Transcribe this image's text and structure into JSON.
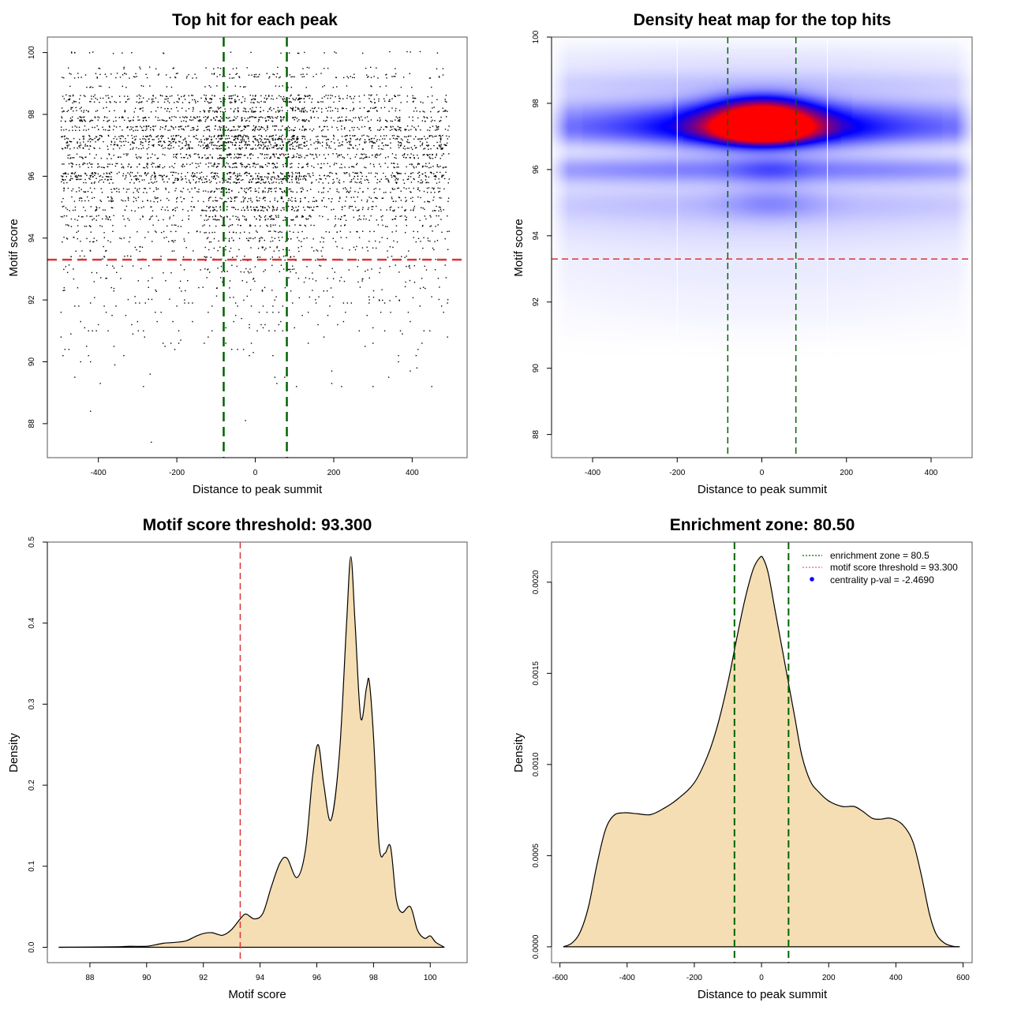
{
  "chart_data": [
    {
      "id": "scatter",
      "type": "scatter",
      "title": "Top hit for each peak",
      "xlabel": "Distance to peak summit",
      "ylabel": "Motif score",
      "xlim": [
        -530,
        540
      ],
      "ylim": [
        86.9,
        100.5
      ],
      "xticks": [
        -400,
        -200,
        0,
        200,
        400
      ],
      "yticks": [
        88,
        90,
        92,
        94,
        96,
        98,
        100
      ],
      "vlines": [
        -80.5,
        80.5
      ],
      "hline": 93.3,
      "vline_color": "#006400",
      "hline_color": "#dd3333",
      "point_color": "#000000",
      "sparse_points": [
        [
          -265,
          87.4
        ],
        [
          -420,
          88.4
        ],
        [
          -25,
          88.1
        ],
        [
          -460,
          89.5
        ],
        [
          -395,
          89.3
        ],
        [
          -268,
          89.6
        ],
        [
          -285,
          89.2
        ],
        [
          50,
          89.5
        ],
        [
          55,
          89.3
        ],
        [
          75,
          89.5
        ],
        [
          105,
          89.2
        ],
        [
          195,
          89.7
        ],
        [
          195,
          89.3
        ],
        [
          220,
          89.2
        ],
        [
          300,
          89.2
        ],
        [
          340,
          89.5
        ],
        [
          395,
          89.7
        ],
        [
          412,
          89.8
        ],
        [
          450,
          89.2
        ],
        [
          -445,
          90.0
        ],
        [
          -420,
          90.0
        ],
        [
          -358,
          89.9
        ],
        [
          -490,
          90.2
        ],
        [
          -425,
          90.2
        ],
        [
          -335,
          90.2
        ],
        [
          -5,
          90.3
        ],
        [
          -15,
          90.2
        ],
        [
          45,
          90.2
        ],
        [
          80,
          90.2
        ],
        [
          365,
          90.2
        ],
        [
          365,
          90.0
        ],
        [
          410,
          90.2
        ],
        [
          415,
          90.4
        ],
        [
          -485,
          90.4
        ],
        [
          -475,
          90.4
        ],
        [
          -430,
          90.5
        ],
        [
          -360,
          90.5
        ],
        [
          -230,
          90.5
        ],
        [
          -205,
          90.4
        ],
        [
          -60,
          90.4
        ],
        [
          -45,
          90.4
        ],
        [
          -30,
          90.4
        ],
        [
          -10,
          90.6
        ],
        [
          280,
          90.5
        ],
        [
          425,
          90.6
        ],
        [
          -495,
          90.8
        ],
        [
          -470,
          90.9
        ],
        [
          -312,
          90.9
        ],
        [
          -282,
          90.8
        ],
        [
          -195,
          90.6
        ],
        [
          -190,
          90.7
        ],
        [
          -235,
          90.6
        ],
        [
          -215,
          90.6
        ],
        [
          -130,
          90.6
        ],
        [
          -120,
          90.8
        ],
        [
          -75,
          90.6
        ],
        [
          135,
          90.6
        ],
        [
          175,
          90.8
        ],
        [
          300,
          90.6
        ],
        [
          490,
          90.8
        ],
        [
          -425,
          91.0
        ],
        [
          -415,
          91.0
        ],
        [
          -405,
          91.0
        ],
        [
          -375,
          91.0
        ],
        [
          -435,
          91.1
        ],
        [
          -298,
          91.0
        ],
        [
          -285,
          91.0
        ],
        [
          -195,
          91.0
        ],
        [
          -110,
          91.0
        ],
        [
          -75,
          91.1
        ],
        [
          -15,
          91.1
        ],
        [
          5,
          91.0
        ],
        [
          20,
          91.1
        ],
        [
          35,
          91.0
        ],
        [
          50,
          91.0
        ],
        [
          70,
          91.0
        ],
        [
          100,
          91.1
        ],
        [
          265,
          91.0
        ],
        [
          300,
          91.1
        ],
        [
          330,
          91.0
        ],
        [
          370,
          91.0
        ],
        [
          375,
          90.9
        ],
        [
          430,
          91.0
        ],
        [
          445,
          91.0
        ],
        [
          -445,
          91.3
        ],
        [
          -400,
          91.2
        ],
        [
          -315,
          91.2
        ],
        [
          -300,
          91.3
        ],
        [
          -250,
          91.3
        ],
        [
          -210,
          91.3
        ],
        [
          -160,
          91.3
        ],
        [
          -55,
          91.3
        ],
        [
          -35,
          91.4
        ],
        [
          -15,
          91.2
        ],
        [
          15,
          91.2
        ],
        [
          25,
          91.2
        ],
        [
          60,
          91.2
        ],
        [
          65,
          91.3
        ],
        [
          160,
          91.2
        ],
        [
          210,
          91.2
        ],
        [
          225,
          91.3
        ],
        [
          395,
          91.3
        ],
        [
          -495,
          91.6
        ],
        [
          -380,
          91.6
        ],
        [
          -365,
          91.5
        ],
        [
          -330,
          91.5
        ],
        [
          -255,
          91.6
        ],
        [
          -240,
          91.6
        ],
        [
          -120,
          91.6
        ],
        [
          -80,
          91.6
        ],
        [
          -50,
          91.5
        ],
        [
          10,
          91.6
        ],
        [
          30,
          91.6
        ],
        [
          45,
          91.6
        ],
        [
          60,
          91.6
        ],
        [
          120,
          91.5
        ],
        [
          135,
          91.6
        ],
        [
          185,
          91.5
        ],
        [
          230,
          91.6
        ],
        [
          285,
          91.5
        ],
        [
          320,
          91.6
        ],
        [
          345,
          91.6
        ],
        [
          390,
          91.6
        ],
        [
          480,
          91.6
        ],
        [
          -460,
          91.8
        ],
        [
          -450,
          91.8
        ],
        [
          -420,
          91.9
        ],
        [
          -385,
          91.8
        ],
        [
          -355,
          91.8
        ],
        [
          -305,
          91.9
        ],
        [
          -295,
          91.9
        ],
        [
          -280,
          91.9
        ],
        [
          -200,
          91.8
        ],
        [
          -180,
          91.9
        ],
        [
          -170,
          91.9
        ],
        [
          -160,
          91.9
        ],
        [
          -110,
          91.8
        ],
        [
          -50,
          91.9
        ],
        [
          -45,
          91.8
        ],
        [
          -10,
          91.8
        ],
        [
          20,
          91.8
        ],
        [
          45,
          91.8
        ],
        [
          70,
          91.8
        ],
        [
          95,
          91.9
        ],
        [
          155,
          91.9
        ],
        [
          190,
          91.8
        ],
        [
          225,
          91.9
        ],
        [
          235,
          91.9
        ],
        [
          245,
          91.9
        ],
        [
          290,
          91.9
        ],
        [
          330,
          91.9
        ],
        [
          420,
          91.8
        ],
        [
          475,
          91.8
        ],
        [
          490,
          91.9
        ]
      ],
      "dense_rows": [
        {
          "y": 92.0,
          "density": 0.1
        },
        {
          "y": 92.1,
          "density": 0.1
        },
        {
          "y": 92.3,
          "density": 0.1
        },
        {
          "y": 92.4,
          "density": 0.12
        },
        {
          "y": 92.6,
          "density": 0.12
        },
        {
          "y": 92.7,
          "density": 0.14
        },
        {
          "y": 92.9,
          "density": 0.14
        },
        {
          "y": 93.0,
          "density": 0.16
        },
        {
          "y": 93.1,
          "density": 0.16
        },
        {
          "y": 93.3,
          "density": 0.18
        },
        {
          "y": 93.4,
          "density": 0.2
        },
        {
          "y": 93.6,
          "density": 0.2
        },
        {
          "y": 93.7,
          "density": 0.22
        },
        {
          "y": 93.9,
          "density": 0.28
        },
        {
          "y": 94.0,
          "density": 0.34
        },
        {
          "y": 94.2,
          "density": 0.38
        },
        {
          "y": 94.4,
          "density": 0.42
        },
        {
          "y": 94.6,
          "density": 0.5
        },
        {
          "y": 94.7,
          "density": 0.55
        },
        {
          "y": 94.9,
          "density": 0.62
        },
        {
          "y": 95.0,
          "density": 0.6
        },
        {
          "y": 95.2,
          "density": 0.55
        },
        {
          "y": 95.3,
          "density": 0.55
        },
        {
          "y": 95.5,
          "density": 0.6
        },
        {
          "y": 95.6,
          "density": 0.62
        },
        {
          "y": 95.8,
          "density": 0.7
        },
        {
          "y": 95.9,
          "density": 0.88
        },
        {
          "y": 96.0,
          "density": 0.95
        },
        {
          "y": 96.1,
          "density": 0.9
        },
        {
          "y": 96.3,
          "density": 0.75
        },
        {
          "y": 96.4,
          "density": 0.68
        },
        {
          "y": 96.6,
          "density": 0.72
        },
        {
          "y": 96.7,
          "density": 0.8
        },
        {
          "y": 96.9,
          "density": 0.86
        },
        {
          "y": 97.0,
          "density": 0.9
        },
        {
          "y": 97.1,
          "density": 0.95
        },
        {
          "y": 97.2,
          "density": 1.0
        },
        {
          "y": 97.3,
          "density": 0.98
        },
        {
          "y": 97.5,
          "density": 0.85
        },
        {
          "y": 97.6,
          "density": 0.82
        },
        {
          "y": 97.8,
          "density": 0.95
        },
        {
          "y": 97.9,
          "density": 0.85
        },
        {
          "y": 98.1,
          "density": 0.7
        },
        {
          "y": 98.2,
          "density": 0.55
        },
        {
          "y": 98.4,
          "density": 0.62
        },
        {
          "y": 98.5,
          "density": 0.6
        },
        {
          "y": 98.6,
          "density": 0.6
        },
        {
          "y": 98.9,
          "density": 0.25
        },
        {
          "y": 99.2,
          "density": 0.4
        },
        {
          "y": 99.3,
          "density": 0.3
        },
        {
          "y": 99.5,
          "density": 0.18
        },
        {
          "y": 100.0,
          "density": 0.16
        }
      ]
    },
    {
      "id": "heatmap",
      "type": "heatmap",
      "title": "Density heat map for the top hits",
      "xlabel": "Distance to peak summit",
      "ylabel": "Motif score",
      "xlim": [
        -497,
        497
      ],
      "ylim": [
        87.3,
        100
      ],
      "xticks": [
        -400,
        -200,
        0,
        200,
        400
      ],
      "yticks": [
        88,
        90,
        92,
        94,
        96,
        98,
        100
      ],
      "vlines": [
        -80.5,
        80.5
      ],
      "hline": 93.3,
      "white_vlines": [
        -200,
        155
      ],
      "vline_color": "#006400",
      "hline_color": "#dd3333",
      "colorscale": [
        "#ffffff",
        "#0000ff",
        "#ff0000"
      ],
      "blobs": [
        {
          "x": 0,
          "y": 97.2,
          "sx": 70,
          "sy": 0.28,
          "intensity": 1.0
        },
        {
          "x": 0,
          "y": 97.75,
          "sx": 80,
          "sy": 0.35,
          "intensity": 0.62
        },
        {
          "x": 0,
          "y": 97.3,
          "sx": 160,
          "sy": 0.45,
          "intensity": 0.45
        },
        {
          "x": 0,
          "y": 97.2,
          "sx": 600,
          "sy": 0.35,
          "intensity": 0.32
        },
        {
          "x": 0,
          "y": 96.0,
          "sx": 600,
          "sy": 0.3,
          "intensity": 0.25
        },
        {
          "x": 0,
          "y": 97.8,
          "sx": 600,
          "sy": 0.35,
          "intensity": 0.18
        },
        {
          "x": 0,
          "y": 98.6,
          "sx": 600,
          "sy": 0.3,
          "intensity": 0.1
        },
        {
          "x": 0,
          "y": 95.0,
          "sx": 600,
          "sy": 0.4,
          "intensity": 0.12
        },
        {
          "x": 20,
          "y": 95.0,
          "sx": 80,
          "sy": 0.35,
          "intensity": 0.1
        },
        {
          "x": 20,
          "y": 96.0,
          "sx": 60,
          "sy": 0.3,
          "intensity": 0.1
        },
        {
          "x": 0,
          "y": 94.2,
          "sx": 600,
          "sy": 0.5,
          "intensity": 0.06
        },
        {
          "x": 0,
          "y": 93.0,
          "sx": 600,
          "sy": 0.6,
          "intensity": 0.035
        },
        {
          "x": 0,
          "y": 91.8,
          "sx": 400,
          "sy": 0.6,
          "intensity": 0.02
        },
        {
          "x": 0,
          "y": 99.3,
          "sx": 600,
          "sy": 0.4,
          "intensity": 0.05
        }
      ]
    },
    {
      "id": "score-density",
      "type": "area",
      "title": "Motif score threshold: 93.300",
      "xlabel": "Motif score",
      "ylabel": "Density",
      "xlim": [
        86.5,
        101.3
      ],
      "ylim": [
        -0.019,
        0.5
      ],
      "xticks": [
        88,
        90,
        92,
        94,
        96,
        98,
        100
      ],
      "yticks": [
        0.0,
        0.1,
        0.2,
        0.3,
        0.4,
        0.5
      ],
      "ytick_labels": [
        "0.0",
        "0.1",
        "0.2",
        "0.3",
        "0.4",
        "0.5"
      ],
      "vline": 93.3,
      "vline_color": "#dd3333",
      "fill_color": "#f5deb3",
      "x": [
        86.9,
        88.0,
        89.0,
        89.4,
        90.0,
        90.3,
        90.6,
        91.0,
        91.4,
        91.7,
        92.0,
        92.3,
        92.5,
        92.7,
        93.0,
        93.3,
        93.5,
        93.8,
        94.1,
        94.4,
        94.7,
        94.95,
        95.3,
        95.6,
        95.85,
        96.05,
        96.25,
        96.5,
        96.8,
        97.05,
        97.2,
        97.35,
        97.55,
        97.75,
        97.85,
        98.0,
        98.2,
        98.4,
        98.6,
        98.8,
        99.0,
        99.3,
        99.55,
        99.8,
        100.0,
        100.2,
        100.5
      ],
      "y": [
        0.0,
        0.0003,
        0.0006,
        0.0012,
        0.0012,
        0.003,
        0.005,
        0.006,
        0.008,
        0.013,
        0.017,
        0.018,
        0.016,
        0.015,
        0.022,
        0.035,
        0.041,
        0.035,
        0.042,
        0.075,
        0.104,
        0.11,
        0.086,
        0.12,
        0.21,
        0.25,
        0.2,
        0.157,
        0.24,
        0.4,
        0.482,
        0.4,
        0.283,
        0.32,
        0.328,
        0.26,
        0.125,
        0.116,
        0.124,
        0.06,
        0.043,
        0.05,
        0.021,
        0.011,
        0.014,
        0.006,
        0.0
      ]
    },
    {
      "id": "distance-density",
      "type": "area",
      "title": "Enrichment zone: 80.50",
      "xlabel": "Distance to peak summit",
      "ylabel": "Density",
      "xlim": [
        -625,
        627
      ],
      "ylim": [
        -8.7e-05,
        0.00222
      ],
      "xticks": [
        -600,
        -400,
        -200,
        0,
        200,
        400,
        600
      ],
      "yticks": [
        0.0,
        0.0005,
        0.001,
        0.0015,
        0.002
      ],
      "ytick_labels": [
        "0.0000",
        "0.0005",
        "0.0010",
        "0.0015",
        "0.0020"
      ],
      "vlines": [
        -80.5,
        80.5
      ],
      "vline_color": "#006400",
      "fill_color": "#f5deb3",
      "x": [
        -590,
        -565,
        -540,
        -515,
        -490,
        -465,
        -440,
        -410,
        -370,
        -330,
        -290,
        -250,
        -200,
        -160,
        -130,
        -100,
        -75,
        -50,
        -25,
        -5,
        5,
        20,
        40,
        60,
        80,
        100,
        120,
        145,
        170,
        200,
        240,
        275,
        300,
        330,
        355,
        385,
        420,
        450,
        475,
        500,
        520,
        545,
        570,
        590
      ],
      "y": [
        0.0,
        2e-05,
        8e-05,
        0.00022,
        0.00045,
        0.00064,
        0.00072,
        0.000735,
        0.00073,
        0.000725,
        0.00076,
        0.00081,
        0.0009,
        0.00105,
        0.00122,
        0.00145,
        0.00168,
        0.0019,
        0.00207,
        0.002135,
        0.00213,
        0.00205,
        0.00185,
        0.00165,
        0.00145,
        0.00125,
        0.00105,
        0.00091,
        0.00085,
        0.0008,
        0.00077,
        0.00077,
        0.000745,
        0.000705,
        0.0007,
        0.000705,
        0.00067,
        0.00058,
        0.0004,
        0.00018,
        7e-05,
        2e-05,
        3e-06,
        0.0
      ]
    }
  ],
  "legend": {
    "items": [
      {
        "label": "enrichment zone = 80.5",
        "symbol": "dotted-line",
        "color": "#006400"
      },
      {
        "label": "motif score threshold = 93.300",
        "symbol": "dotted-line",
        "color": "#dd3333"
      },
      {
        "label": "centrality p-val = -2.4690",
        "symbol": "dot",
        "color": "#0000ff"
      }
    ],
    "placement": "top-right"
  }
}
